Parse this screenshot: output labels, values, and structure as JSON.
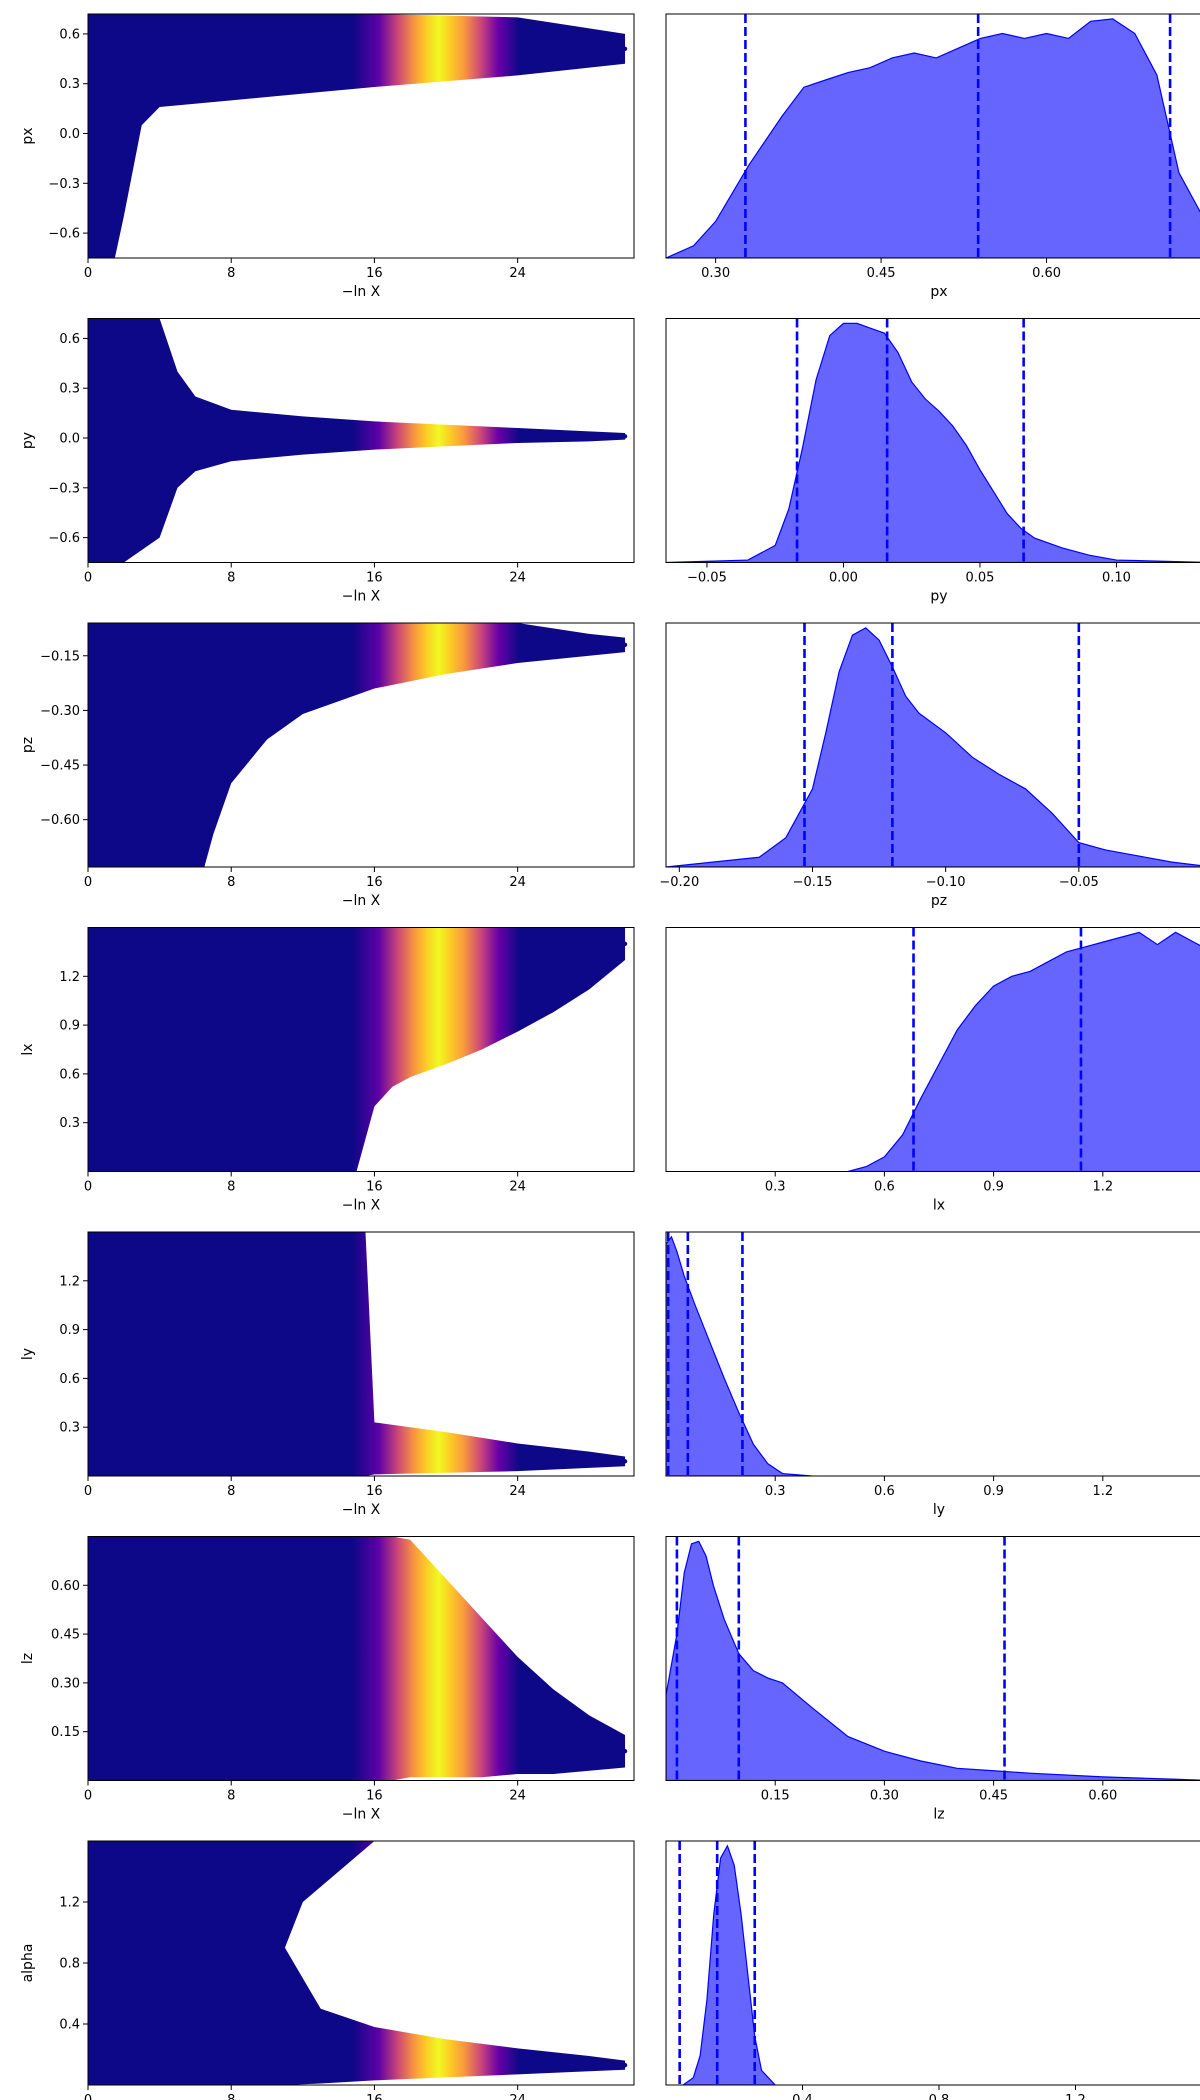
{
  "figure": {
    "trace_xlabel": "−ln X",
    "trace_xticks": [
      "0",
      "8",
      "16",
      "24"
    ],
    "trace_xlim": [
      0,
      30.5
    ]
  },
  "colors": {
    "low": "#0d0887",
    "mid": "#cc4778",
    "high": "#f0f921",
    "kde_fill": "#0000ff",
    "kde_fill_opacity": 0.6,
    "quantile_line": "#0000ff"
  },
  "chart_data": [
    {
      "type": "scatter+kde",
      "param": "px",
      "ylabel": "px",
      "trace_ylim": [
        -0.75,
        0.72
      ],
      "trace_yticks": [
        -0.6,
        -0.3,
        0.0,
        0.3,
        0.6
      ],
      "trace_ytick_labels": [
        "−0.6",
        "−0.3",
        "0.0",
        "0.3",
        "0.6"
      ],
      "trace_envelope": {
        "t": [
          0,
          1.5,
          2.0,
          3.0,
          4.0,
          8,
          12,
          16,
          24,
          30
        ],
        "lower": [
          -0.75,
          -0.75,
          -0.5,
          0.05,
          0.16,
          0.2,
          0.24,
          0.28,
          0.35,
          0.42
        ],
        "upper": [
          0.72,
          0.72,
          0.72,
          0.72,
          0.72,
          0.72,
          0.72,
          0.72,
          0.7,
          0.6
        ],
        "t_end": 30
      },
      "kde_xlim": [
        0.255,
        0.75
      ],
      "kde_xticks": [
        0.3,
        0.45,
        0.6
      ],
      "kde_xtick_labels": [
        "0.30",
        "0.45",
        "0.60"
      ],
      "kde_curve": {
        "x": [
          0.255,
          0.28,
          0.3,
          0.33,
          0.36,
          0.38,
          0.4,
          0.42,
          0.44,
          0.46,
          0.48,
          0.5,
          0.52,
          0.54,
          0.56,
          0.58,
          0.6,
          0.62,
          0.64,
          0.66,
          0.68,
          0.7,
          0.72,
          0.75
        ],
        "y": [
          0.0,
          0.05,
          0.15,
          0.38,
          0.58,
          0.7,
          0.73,
          0.76,
          0.78,
          0.82,
          0.84,
          0.82,
          0.86,
          0.9,
          0.92,
          0.9,
          0.92,
          0.9,
          0.97,
          0.98,
          0.92,
          0.75,
          0.35,
          0.1
        ]
      },
      "quantiles": [
        0.327,
        0.538,
        0.712
      ]
    },
    {
      "type": "scatter+kde",
      "param": "py",
      "ylabel": "py",
      "trace_ylim": [
        -0.75,
        0.72
      ],
      "trace_yticks": [
        -0.6,
        -0.3,
        0.0,
        0.3,
        0.6
      ],
      "trace_ytick_labels": [
        "−0.6",
        "−0.3",
        "0.0",
        "0.3",
        "0.6"
      ],
      "trace_envelope": {
        "t": [
          0,
          2,
          4,
          5,
          6,
          8,
          12,
          16,
          20,
          24,
          28,
          30
        ],
        "lower": [
          -0.75,
          -0.75,
          -0.6,
          -0.3,
          -0.2,
          -0.14,
          -0.1,
          -0.07,
          -0.05,
          -0.03,
          -0.02,
          -0.01
        ],
        "upper": [
          0.72,
          0.72,
          0.72,
          0.4,
          0.25,
          0.17,
          0.13,
          0.1,
          0.08,
          0.06,
          0.04,
          0.03
        ],
        "t_end": 30
      },
      "kde_xlim": [
        -0.065,
        0.135
      ],
      "kde_xticks": [
        -0.05,
        0.0,
        0.05,
        0.1
      ],
      "kde_xtick_labels": [
        "−0.05",
        "0.00",
        "0.05",
        "0.10"
      ],
      "kde_curve": {
        "x": [
          -0.065,
          -0.035,
          -0.025,
          -0.02,
          -0.015,
          -0.01,
          -0.005,
          0.0,
          0.005,
          0.01,
          0.015,
          0.02,
          0.025,
          0.03,
          0.035,
          0.04,
          0.045,
          0.05,
          0.055,
          0.06,
          0.065,
          0.07,
          0.08,
          0.09,
          0.1,
          0.135
        ],
        "y": [
          0.0,
          0.01,
          0.07,
          0.22,
          0.47,
          0.75,
          0.93,
          0.98,
          0.98,
          0.96,
          0.94,
          0.86,
          0.74,
          0.67,
          0.62,
          0.56,
          0.48,
          0.38,
          0.29,
          0.2,
          0.14,
          0.1,
          0.06,
          0.03,
          0.01,
          0.0
        ]
      },
      "quantiles": [
        -0.017,
        0.016,
        0.066
      ]
    },
    {
      "type": "scatter+kde",
      "param": "pz",
      "ylabel": "pz",
      "trace_ylim": [
        -0.73,
        -0.06
      ],
      "trace_yticks": [
        -0.6,
        -0.45,
        -0.3,
        -0.15
      ],
      "trace_ytick_labels": [
        "−0.60",
        "−0.45",
        "−0.30",
        "−0.15"
      ],
      "trace_envelope": {
        "t": [
          0,
          5,
          6.5,
          7,
          8,
          10,
          12,
          16,
          20,
          24,
          28,
          30
        ],
        "lower": [
          -0.73,
          -0.73,
          -0.73,
          -0.64,
          -0.5,
          -0.38,
          -0.31,
          -0.24,
          -0.2,
          -0.17,
          -0.15,
          -0.14
        ],
        "upper": [
          -0.06,
          -0.06,
          -0.06,
          -0.06,
          -0.06,
          -0.06,
          -0.06,
          -0.06,
          -0.06,
          -0.06,
          -0.09,
          -0.1
        ],
        "t_end": 30
      },
      "kde_xlim": [
        -0.205,
        0.0
      ],
      "kde_xticks": [
        -0.2,
        -0.15,
        -0.1,
        -0.05
      ],
      "kde_xtick_labels": [
        "−0.20",
        "−0.15",
        "−0.10",
        "−0.05"
      ],
      "kde_curve": {
        "x": [
          -0.205,
          -0.17,
          -0.16,
          -0.15,
          -0.145,
          -0.14,
          -0.135,
          -0.13,
          -0.125,
          -0.12,
          -0.115,
          -0.11,
          -0.1,
          -0.09,
          -0.08,
          -0.07,
          -0.06,
          -0.05,
          -0.04,
          -0.03,
          -0.015,
          0.0
        ],
        "y": [
          0.0,
          0.04,
          0.12,
          0.32,
          0.55,
          0.8,
          0.95,
          0.98,
          0.93,
          0.82,
          0.7,
          0.63,
          0.55,
          0.45,
          0.38,
          0.32,
          0.22,
          0.1,
          0.07,
          0.05,
          0.02,
          0.0
        ]
      },
      "quantiles": [
        -0.153,
        -0.12,
        -0.05
      ]
    },
    {
      "type": "scatter+kde",
      "param": "lx",
      "ylabel": "lx",
      "trace_ylim": [
        0.0,
        1.5
      ],
      "trace_yticks": [
        0.3,
        0.6,
        0.9,
        1.2
      ],
      "trace_ytick_labels": [
        "0.3",
        "0.6",
        "0.9",
        "1.2"
      ],
      "trace_envelope": {
        "t": [
          0,
          15,
          16,
          17,
          18,
          20,
          22,
          24,
          26,
          28,
          30
        ],
        "lower": [
          0.0,
          0.0,
          0.4,
          0.52,
          0.58,
          0.66,
          0.75,
          0.86,
          0.98,
          1.12,
          1.3
        ],
        "upper": [
          1.5,
          1.5,
          1.5,
          1.5,
          1.5,
          1.5,
          1.5,
          1.5,
          1.5,
          1.5,
          1.5
        ],
        "t_end": 30
      },
      "kde_xlim": [
        0.0,
        1.5
      ],
      "kde_xticks": [
        0.3,
        0.6,
        0.9,
        1.2
      ],
      "kde_xtick_labels": [
        "0.3",
        "0.6",
        "0.9",
        "1.2"
      ],
      "kde_curve": {
        "x": [
          0.5,
          0.55,
          0.6,
          0.65,
          0.7,
          0.75,
          0.8,
          0.85,
          0.9,
          0.95,
          1.0,
          1.05,
          1.1,
          1.15,
          1.2,
          1.25,
          1.3,
          1.35,
          1.4,
          1.45,
          1.5
        ],
        "y": [
          0.0,
          0.02,
          0.06,
          0.15,
          0.3,
          0.44,
          0.58,
          0.68,
          0.76,
          0.8,
          0.82,
          0.86,
          0.9,
          0.92,
          0.94,
          0.96,
          0.98,
          0.93,
          0.98,
          0.94,
          0.9
        ]
      },
      "quantiles": [
        0.68,
        1.14,
        1.48
      ]
    },
    {
      "type": "scatter+kde",
      "param": "ly",
      "ylabel": "ly",
      "trace_ylim": [
        0.0,
        1.5
      ],
      "trace_yticks": [
        0.3,
        0.6,
        0.9,
        1.2
      ],
      "trace_ytick_labels": [
        "0.3",
        "0.6",
        "0.9",
        "1.2"
      ],
      "trace_envelope": {
        "t": [
          0,
          15.5,
          16,
          20,
          24,
          28,
          30
        ],
        "lower": [
          0.0,
          0.0,
          0.01,
          0.02,
          0.03,
          0.05,
          0.06
        ],
        "upper": [
          1.5,
          1.5,
          0.33,
          0.27,
          0.2,
          0.15,
          0.12
        ],
        "t_end": 30
      },
      "kde_xlim": [
        0.0,
        1.5
      ],
      "kde_xticks": [
        0.3,
        0.6,
        0.9,
        1.2
      ],
      "kde_xtick_labels": [
        "0.3",
        "0.6",
        "0.9",
        "1.2"
      ],
      "kde_curve": {
        "x": [
          0.0,
          0.015,
          0.03,
          0.05,
          0.08,
          0.12,
          0.16,
          0.2,
          0.24,
          0.28,
          0.32,
          0.4
        ],
        "y": [
          0.95,
          0.98,
          0.92,
          0.82,
          0.7,
          0.55,
          0.4,
          0.26,
          0.13,
          0.05,
          0.01,
          0.0
        ]
      },
      "quantiles": [
        0.006,
        0.06,
        0.21
      ]
    },
    {
      "type": "scatter+kde",
      "param": "lz",
      "ylabel": "lz",
      "trace_ylim": [
        0.0,
        0.75
      ],
      "trace_yticks": [
        0.15,
        0.3,
        0.45,
        0.6
      ],
      "trace_ytick_labels": [
        "0.15",
        "0.30",
        "0.45",
        "0.60"
      ],
      "trace_envelope": {
        "t": [
          0,
          17,
          18,
          20,
          22,
          24,
          26,
          28,
          30
        ],
        "lower": [
          0.0,
          0.0,
          0.01,
          0.01,
          0.01,
          0.02,
          0.02,
          0.03,
          0.04
        ],
        "upper": [
          0.75,
          0.75,
          0.74,
          0.62,
          0.5,
          0.38,
          0.28,
          0.2,
          0.14
        ],
        "t_end": 30
      },
      "kde_xlim": [
        0.0,
        0.75
      ],
      "kde_xticks": [
        0.15,
        0.3,
        0.45,
        0.6
      ],
      "kde_xtick_labels": [
        "0.15",
        "0.30",
        "0.45",
        "0.60"
      ],
      "kde_curve": {
        "x": [
          0.0,
          0.015,
          0.025,
          0.035,
          0.045,
          0.055,
          0.065,
          0.08,
          0.1,
          0.12,
          0.14,
          0.16,
          0.2,
          0.25,
          0.3,
          0.35,
          0.4,
          0.45,
          0.5,
          0.6,
          0.7,
          0.75
        ],
        "y": [
          0.35,
          0.6,
          0.85,
          0.97,
          0.98,
          0.92,
          0.8,
          0.66,
          0.52,
          0.45,
          0.42,
          0.4,
          0.3,
          0.18,
          0.12,
          0.08,
          0.05,
          0.04,
          0.03,
          0.015,
          0.005,
          0.0
        ]
      },
      "quantiles": [
        0.015,
        0.1,
        0.465
      ]
    },
    {
      "type": "scatter+kde",
      "param": "alpha",
      "ylabel": "alpha",
      "trace_ylim": [
        0.0,
        1.6
      ],
      "trace_yticks": [
        0.4,
        0.8,
        1.2
      ],
      "trace_ytick_labels": [
        "0.4",
        "0.8",
        "1.2"
      ],
      "trace_envelope": {
        "t": [
          0,
          16,
          15,
          12,
          11,
          13,
          16,
          20,
          24,
          28,
          30
        ],
        "lower": [
          0.0,
          0.0,
          0.0,
          0.0,
          0.0,
          0.01,
          0.03,
          0.05,
          0.07,
          0.09,
          0.1
        ],
        "upper": [
          1.6,
          1.6,
          1.5,
          1.2,
          0.9,
          0.5,
          0.38,
          0.3,
          0.24,
          0.19,
          0.16
        ],
        "t_end": 30
      },
      "kde_xlim": [
        0.0,
        1.6
      ],
      "kde_xticks": [
        0.4,
        0.8,
        1.2
      ],
      "kde_xtick_labels": [
        "0.4",
        "0.8",
        "1.2"
      ],
      "kde_curve": {
        "x": [
          0.05,
          0.08,
          0.1,
          0.12,
          0.14,
          0.16,
          0.18,
          0.2,
          0.22,
          0.24,
          0.26,
          0.28,
          0.32
        ],
        "y": [
          0.0,
          0.03,
          0.12,
          0.35,
          0.7,
          0.93,
          0.98,
          0.9,
          0.7,
          0.45,
          0.2,
          0.06,
          0.0
        ]
      },
      "quantiles": [
        0.04,
        0.15,
        0.26
      ]
    }
  ]
}
